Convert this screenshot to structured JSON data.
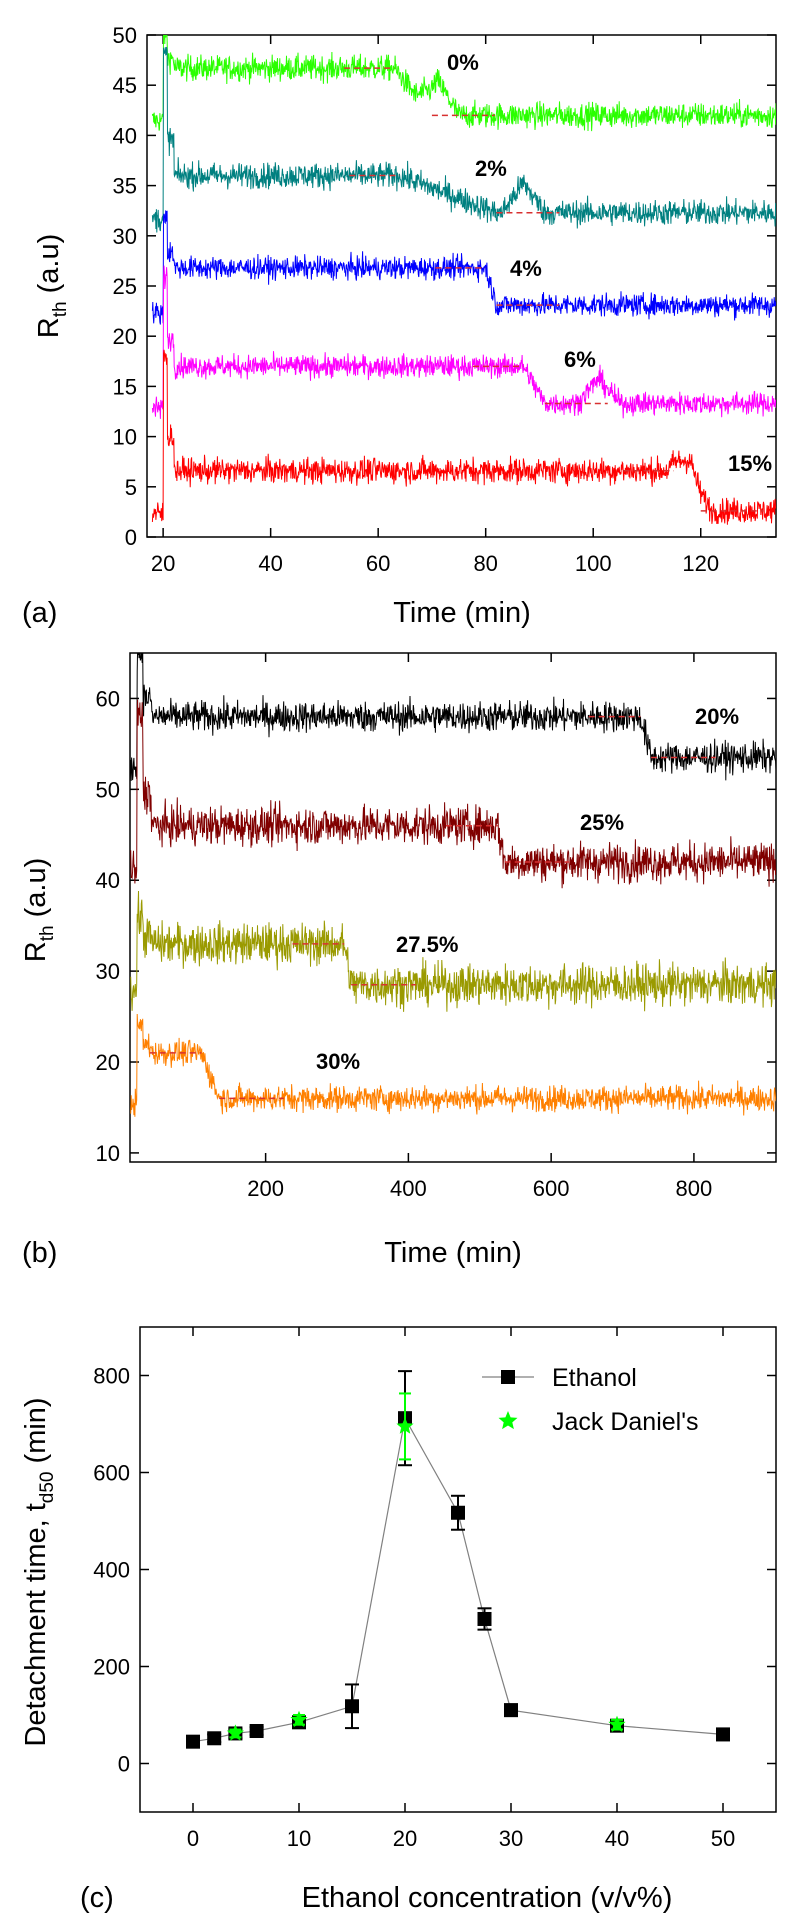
{
  "chart_data": [
    {
      "type": "line",
      "panel_label": "(a)",
      "xlabel": "Time (min)",
      "ylabel": "R",
      "ylabel_sub": "th",
      "ylabel_unit": "(a.u)",
      "xlim": [
        17,
        134
      ],
      "ylim": [
        0,
        50
      ],
      "xticks": [
        20,
        40,
        60,
        80,
        100,
        120
      ],
      "yticks": [
        0,
        5,
        10,
        15,
        20,
        25,
        30,
        35,
        40,
        45,
        50
      ],
      "series": [
        {
          "name": "0%",
          "color": "#2aff00",
          "start_level": 41.5,
          "spike": 50,
          "plateau": 46.7,
          "switch_time": 63,
          "drop_end": 70,
          "final": 42.0,
          "bump_at": 71,
          "bump_height": 3.5,
          "noise": 0.9
        },
        {
          "name": "2%",
          "color": "#008080",
          "start_level": 31.7,
          "spike": 48,
          "plateau": 36.0,
          "switch_time": 64,
          "drop_end": 82,
          "final": 32.3,
          "bump_at": 87,
          "bump_height": 3.0,
          "noise": 0.9
        },
        {
          "name": "4%",
          "color": "#0000ff",
          "start_level": 22.3,
          "spike": 32,
          "plateau": 26.8,
          "switch_time": 80,
          "drop_end": 82,
          "final": 23.1,
          "bump_at": 0,
          "bump_height": 0,
          "noise": 0.8
        },
        {
          "name": "6%",
          "color": "#ff00ff",
          "start_level": 12.8,
          "spike": 26,
          "plateau": 17.0,
          "switch_time": 87,
          "drop_end": 91,
          "final": 13.3,
          "bump_at": 101,
          "bump_height": 2.5,
          "noise": 0.8
        },
        {
          "name": "15%",
          "color": "#ff0000",
          "start_level": 2.3,
          "spike": 18,
          "plateau": 6.6,
          "switch_time": 115,
          "drop_end": 120,
          "final": 2.6,
          "bump_at": 118,
          "bump_height": 3.5,
          "noise": 0.9
        }
      ]
    },
    {
      "type": "line",
      "panel_label": "(b)",
      "xlabel": "Time (min)",
      "ylabel": "R",
      "ylabel_sub": "th",
      "ylabel_unit": "(a.u)",
      "xlim": [
        10,
        915
      ],
      "ylim": [
        9,
        65
      ],
      "xticks": [
        200,
        400,
        600,
        800
      ],
      "yticks": [
        10,
        20,
        30,
        40,
        50,
        60
      ],
      "series": [
        {
          "name": "20%",
          "color": "#000000",
          "start_level": 52.5,
          "spike": 65,
          "plateau": 58.0,
          "switch_time": 725,
          "drop_end": 740,
          "final": 53.5,
          "noise": 1.2
        },
        {
          "name": "25%",
          "color": "#800000",
          "start_level": 41.0,
          "spike": 58,
          "plateau": 46.0,
          "switch_time": 525,
          "drop_end": 535,
          "final": 42.0,
          "noise": 1.5
        },
        {
          "name": "27.5%",
          "color": "#9a9a00",
          "start_level": 28.0,
          "spike": 36,
          "plateau": 33.0,
          "switch_time": 310,
          "drop_end": 320,
          "final": 28.5,
          "noise": 1.6
        },
        {
          "name": "30%",
          "color": "#ff8000",
          "start_level": 15.5,
          "spike": 24,
          "plateau": 21.0,
          "switch_time": 110,
          "drop_end": 135,
          "final": 16.0,
          "noise": 1.0
        }
      ]
    },
    {
      "type": "scatter",
      "panel_label": "(c)",
      "xlabel": "Ethanol concentration (v/v%)",
      "ylabel": "Detachment time, t",
      "ylabel_sub": "d50",
      "ylabel_unit": "(min)",
      "xlim": [
        -5,
        55
      ],
      "ylim": [
        -100,
        900
      ],
      "xticks": [
        0,
        10,
        20,
        30,
        40,
        50
      ],
      "yticks": [
        0,
        200,
        400,
        600,
        800
      ],
      "series": [
        {
          "name": "Ethanol",
          "color": "#000000",
          "marker": "square",
          "x": [
            0,
            2,
            4,
            6,
            10,
            15,
            20,
            25,
            27.5,
            30,
            40,
            50
          ],
          "y": [
            45,
            52,
            62,
            67,
            85,
            118,
            712,
            517,
            298,
            110,
            78,
            60
          ],
          "err": [
            8,
            8,
            10,
            8,
            12,
            45,
            97,
            35,
            22,
            12,
            10,
            12
          ]
        },
        {
          "name": "Jack Daniel's",
          "color": "#00ff00",
          "marker": "star",
          "x": [
            4,
            10,
            20,
            40
          ],
          "y": [
            62,
            90,
            695,
            80
          ],
          "err": [
            8,
            10,
            68,
            10
          ]
        }
      ]
    }
  ]
}
